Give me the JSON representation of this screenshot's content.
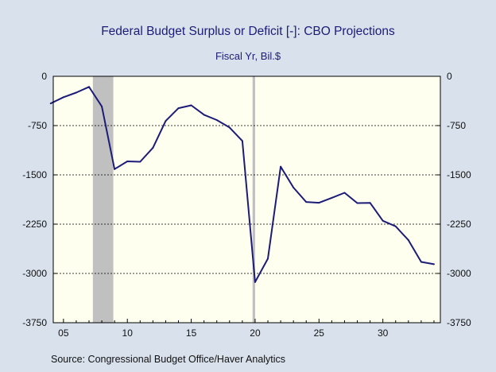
{
  "chart_data": {
    "type": "line",
    "title": "Federal Budget Surplus or Deficit [-]: CBO Projections",
    "subtitle": "Fiscal Yr, Bil.$",
    "source": "Source:  Congressional Budget Office/Haver Analytics",
    "xlabel": "",
    "ylabel": "",
    "xlim": [
      2004.2,
      2034.5
    ],
    "ylim": [
      -3750,
      0
    ],
    "x_ticks": [
      2005,
      2010,
      2015,
      2020,
      2025,
      2030
    ],
    "x_tick_labels": [
      "05",
      "10",
      "15",
      "20",
      "25",
      "30"
    ],
    "y_ticks": [
      0,
      -750,
      -1500,
      -2250,
      -3000,
      -3750
    ],
    "y_tick_labels": [
      "0",
      "-750",
      "-1500",
      "-2250",
      "-3000",
      "-3750"
    ],
    "grid": "horizontal dashed",
    "recession_shading": [
      [
        2007.3,
        2008.9
      ],
      [
        2019.8,
        2020.0
      ]
    ],
    "colors": {
      "line": "#1c1c78",
      "background": "#d9e1ec",
      "plot_background": "#fffff0",
      "shading": "#c0c0c0",
      "title": "#1c1c78"
    },
    "series": [
      {
        "name": "",
        "x": [
          2004,
          2005,
          2006,
          2007,
          2008,
          2009,
          2010,
          2011,
          2012,
          2013,
          2014,
          2015,
          2016,
          2017,
          2018,
          2019,
          2020,
          2021,
          2022,
          2023,
          2024,
          2025,
          2026,
          2027,
          2028,
          2029,
          2030,
          2031,
          2032,
          2033,
          2034
        ],
        "values": [
          -413,
          -318,
          -248,
          -161,
          -459,
          -1413,
          -1294,
          -1300,
          -1087,
          -680,
          -485,
          -442,
          -585,
          -665,
          -779,
          -984,
          -3132,
          -2775,
          -1375,
          -1694,
          -1913,
          -1924,
          -1850,
          -1772,
          -1929,
          -1926,
          -2199,
          -2283,
          -2493,
          -2824,
          -2860
        ]
      }
    ]
  }
}
